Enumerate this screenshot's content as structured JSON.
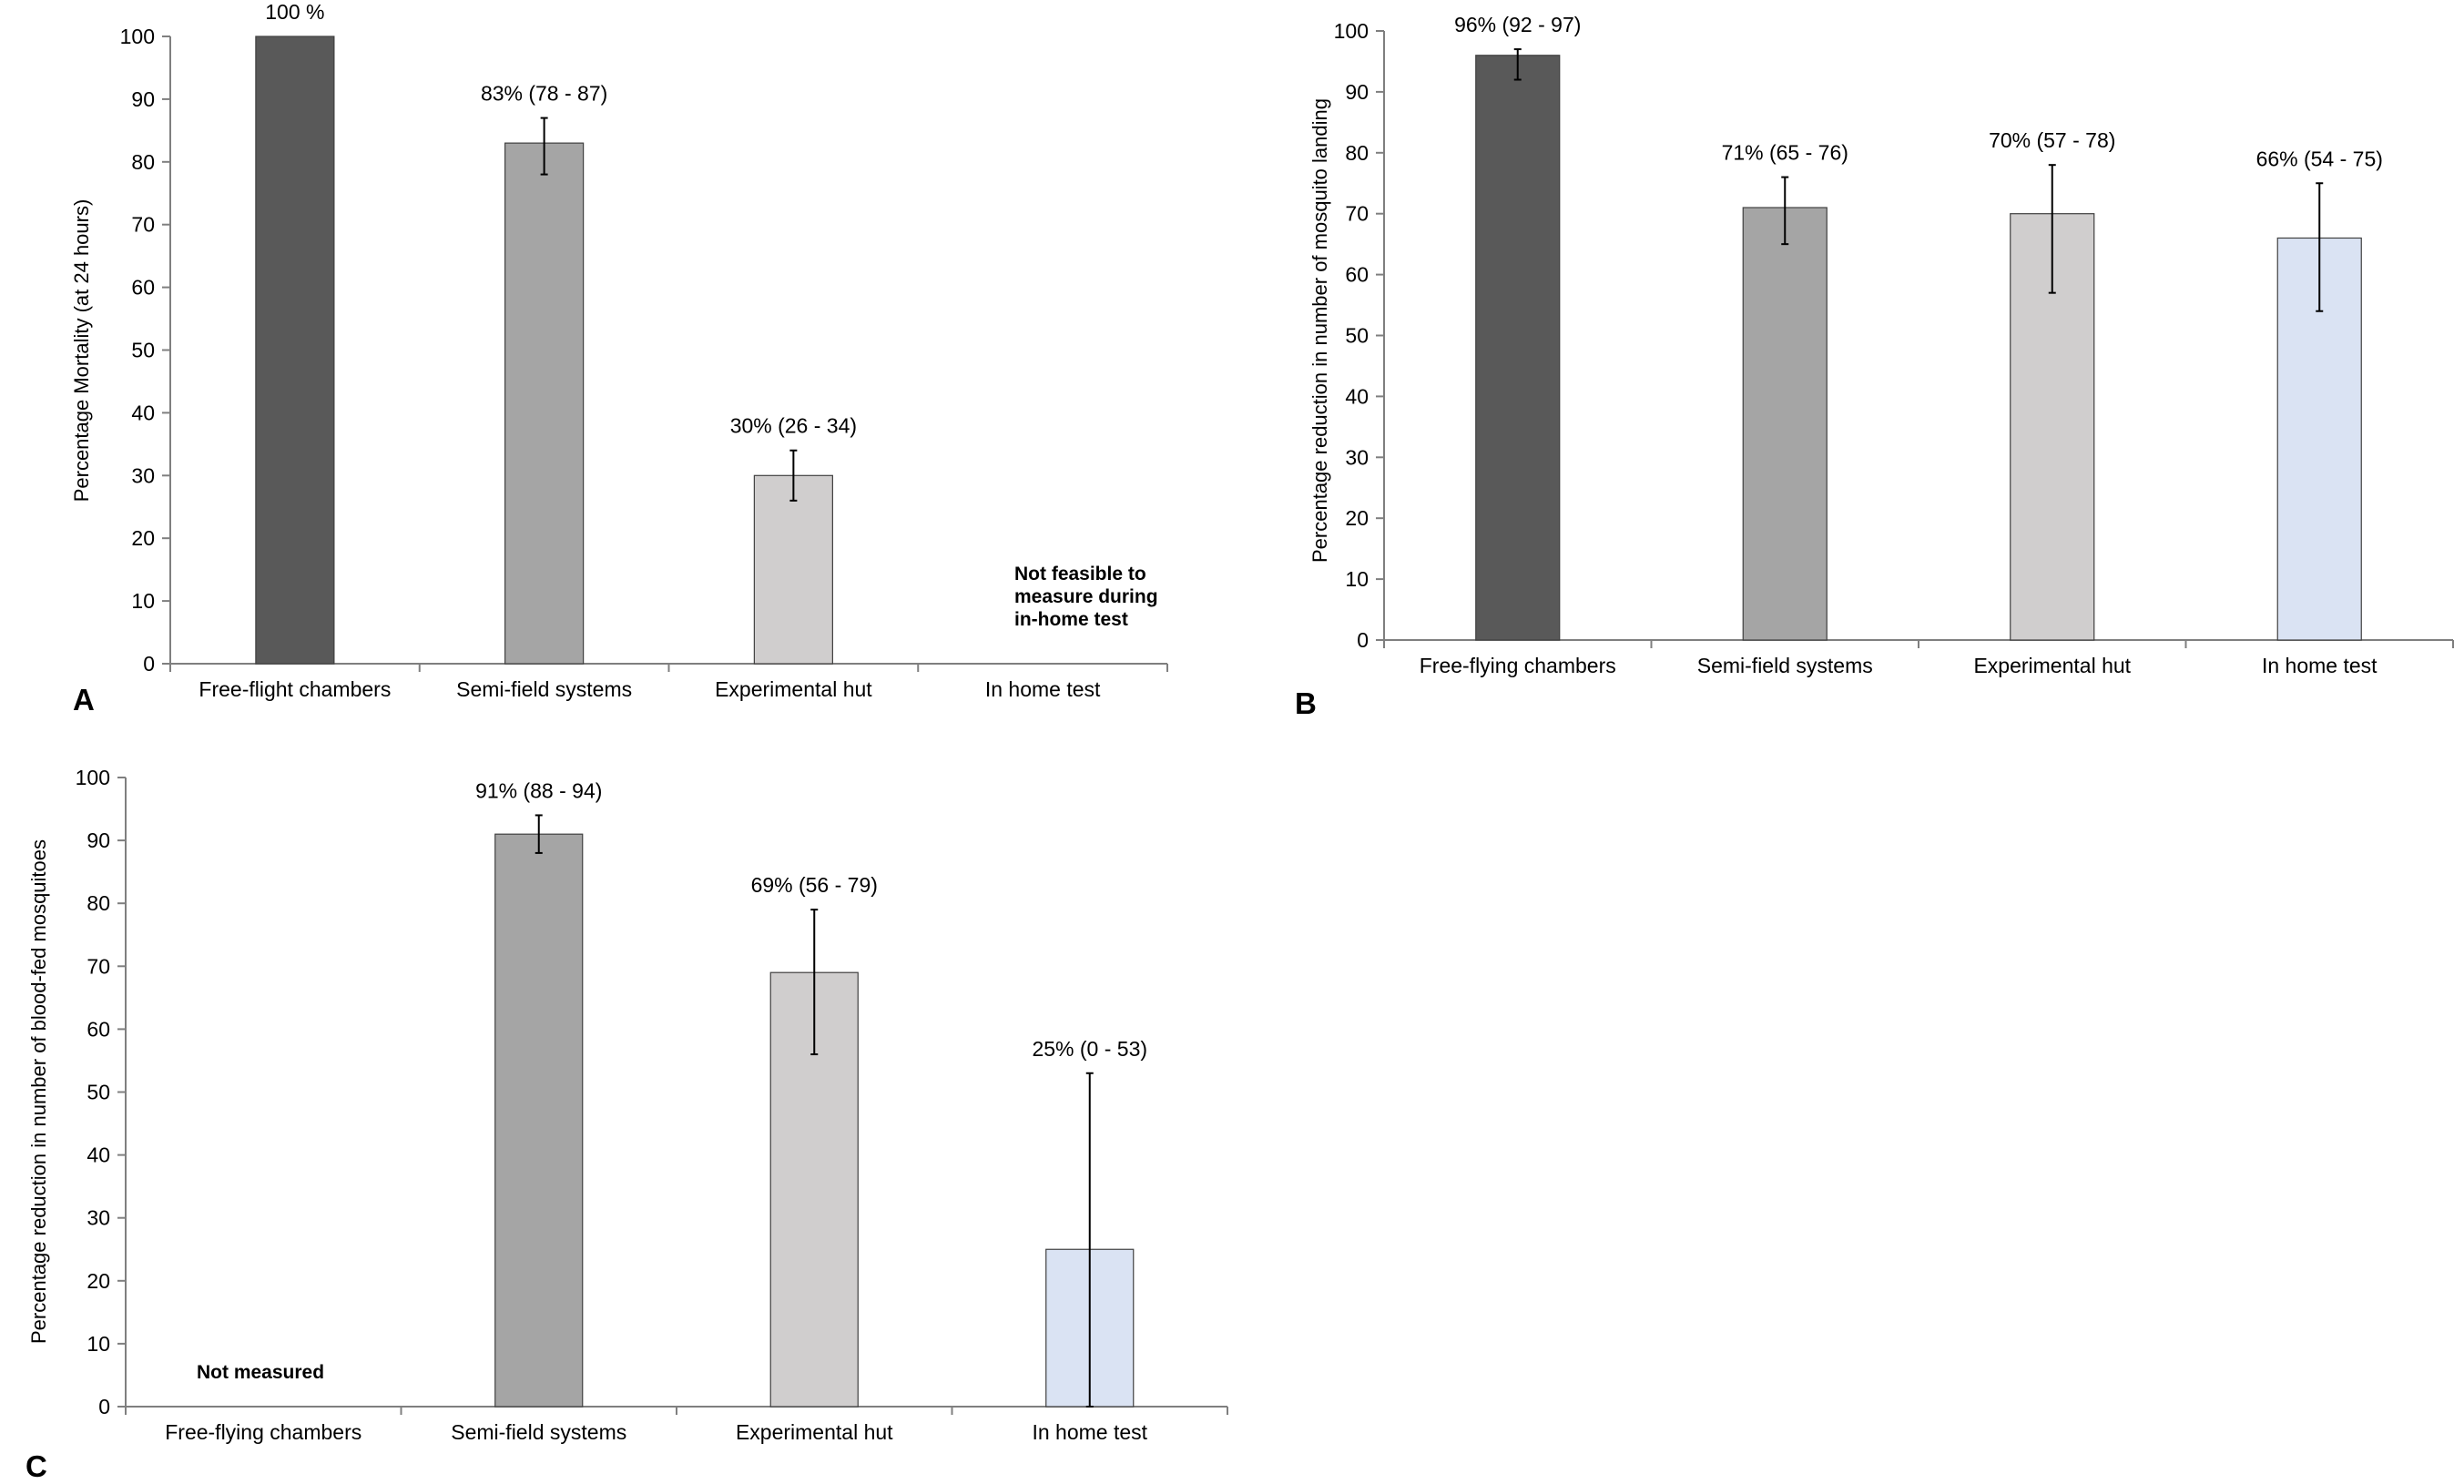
{
  "colors": {
    "free_flight": "#595959",
    "semi_field": "#a5a5a5",
    "experimental_hut": "#d0cece",
    "in_home": "#dae3f3",
    "axis": "#7f7f7f",
    "bar_outline": "#404040",
    "error_bar": "#000000"
  },
  "chart_data": [
    {
      "panel": "A",
      "type": "bar",
      "title": "",
      "xlabel": "",
      "ylabel": "Percentage Mortality (at 24 hours)",
      "ylim": [
        0,
        100
      ],
      "yticks": [
        "0",
        "10",
        "20",
        "30",
        "40",
        "50",
        "60",
        "70",
        "80",
        "90",
        "100"
      ],
      "categories": [
        "Free-flight chambers",
        "Semi-field systems",
        "Experimental hut",
        "In home test"
      ],
      "values": [
        100,
        83,
        30,
        null
      ],
      "errors": [
        null,
        [
          78,
          87
        ],
        [
          26,
          34
        ],
        null
      ],
      "labels": [
        "100 %",
        "83% (78 - 87)",
        "30% (26 - 34)",
        ""
      ],
      "bar_colors": [
        "#595959",
        "#a5a5a5",
        "#d0cece",
        "#dae3f3"
      ],
      "annotation": [
        "Not feasible to",
        "measure during",
        "in-home test"
      ]
    },
    {
      "panel": "B",
      "type": "bar",
      "title": "",
      "xlabel": "",
      "ylabel": "Percentage reduction in number of mosquito landing",
      "ylim": [
        0,
        100
      ],
      "yticks": [
        "0",
        "10",
        "20",
        "30",
        "40",
        "50",
        "60",
        "70",
        "80",
        "90",
        "100"
      ],
      "categories": [
        "Free-flying chambers",
        "Semi-field systems",
        "Experimental hut",
        "In home test"
      ],
      "values": [
        96,
        71,
        70,
        66
      ],
      "errors": [
        [
          92,
          97
        ],
        [
          65,
          76
        ],
        [
          57,
          78
        ],
        [
          54,
          75
        ]
      ],
      "labels": [
        "96% (92 - 97)",
        "71% (65 - 76)",
        "70% (57 - 78)",
        "66% (54 - 75)"
      ],
      "bar_colors": [
        "#595959",
        "#a5a5a5",
        "#d0cece",
        "#dae3f3"
      ],
      "annotation": []
    },
    {
      "panel": "C",
      "type": "bar",
      "title": "",
      "xlabel": "",
      "ylabel": "Percentage reduction in number of blood-fed mosquitoes",
      "ylim": [
        0,
        100
      ],
      "yticks": [
        "0",
        "10",
        "20",
        "30",
        "40",
        "50",
        "60",
        "70",
        "80",
        "90",
        "100"
      ],
      "categories": [
        "Free-flying chambers",
        "Semi-field systems",
        "Experimental hut",
        "In home test"
      ],
      "values": [
        null,
        91,
        69,
        25
      ],
      "errors": [
        null,
        [
          88,
          94
        ],
        [
          56,
          79
        ],
        [
          0,
          53
        ]
      ],
      "labels": [
        "",
        "91% (88 - 94)",
        "69% (56 - 79)",
        "25% (0 - 53)"
      ],
      "bar_colors": [
        "#595959",
        "#a5a5a5",
        "#d0cece",
        "#dae3f3"
      ],
      "annotation": [
        "Not measured"
      ]
    }
  ]
}
